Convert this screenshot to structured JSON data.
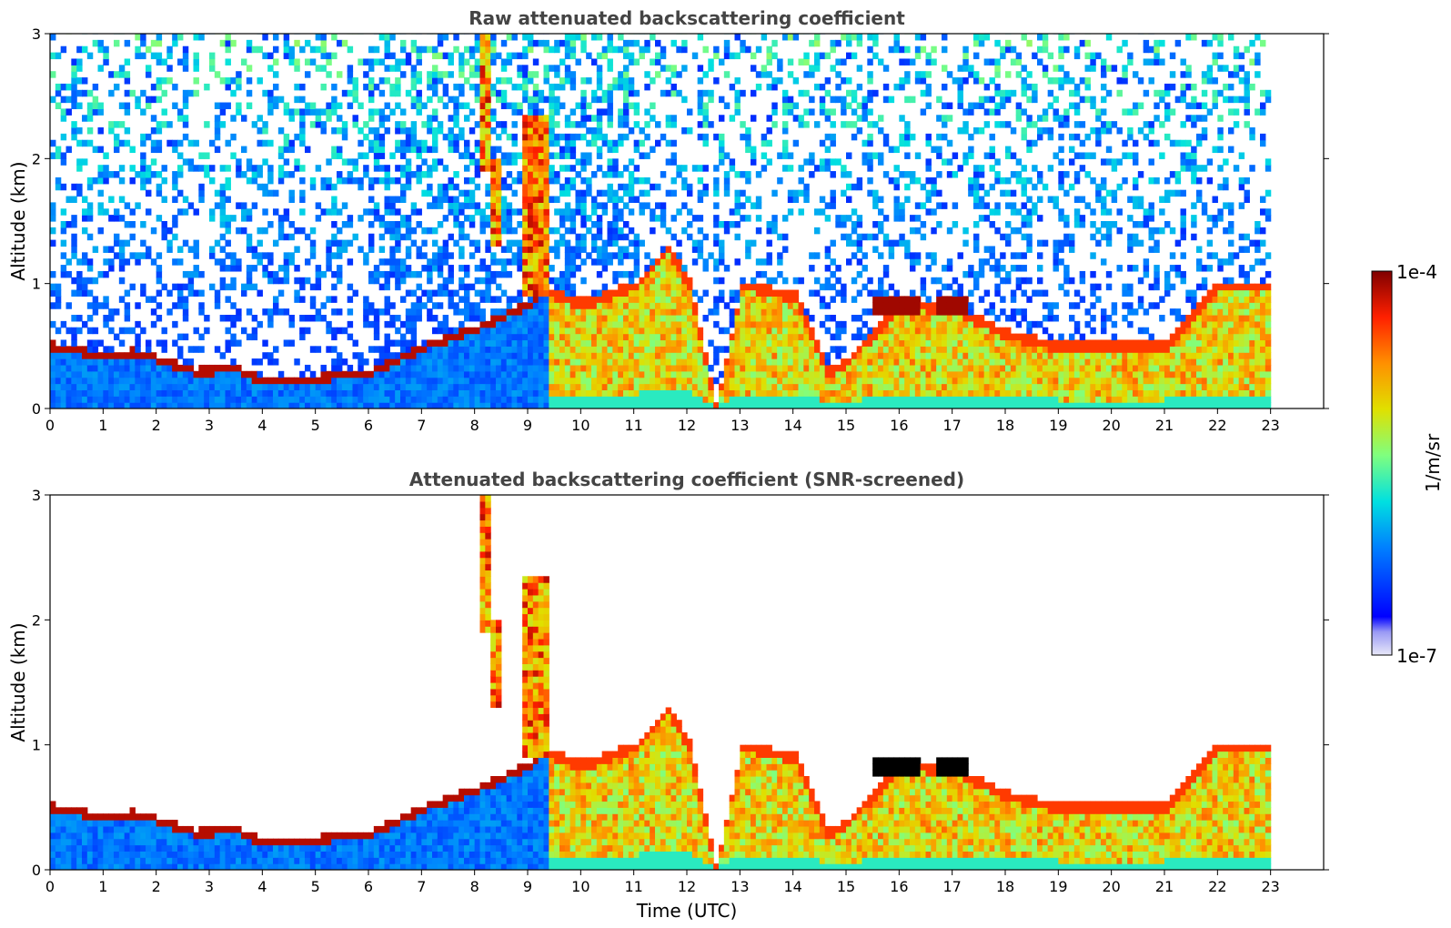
{
  "chart_data": [
    {
      "type": "heatmap",
      "title": "Raw attenuated backscattering coefficient",
      "xlabel": "",
      "ylabel": "Altitude (km)",
      "xlim": [
        0,
        24
      ],
      "ylim": [
        0,
        3
      ],
      "x_ticks": [
        "0",
        "1",
        "2",
        "3",
        "4",
        "5",
        "6",
        "7",
        "8",
        "9",
        "10",
        "11",
        "12",
        "13",
        "14",
        "15",
        "16",
        "17",
        "18",
        "19",
        "20",
        "21",
        "22",
        "23"
      ],
      "y_ticks": [
        "0",
        "1",
        "2",
        "3"
      ],
      "data_end_time": 23,
      "features": {
        "boundary_layer_top_km": [
          [
            0,
            0.5
          ],
          [
            1,
            0.42
          ],
          [
            1.5,
            0.45
          ],
          [
            2,
            0.4
          ],
          [
            2.7,
            0.3
          ],
          [
            3.5,
            0.32
          ],
          [
            4,
            0.22
          ],
          [
            5,
            0.25
          ],
          [
            6,
            0.3
          ],
          [
            7,
            0.5
          ],
          [
            8,
            0.65
          ],
          [
            9,
            0.85
          ],
          [
            9.3,
            0.95
          ],
          [
            10,
            0.85
          ],
          [
            11,
            1.0
          ],
          [
            11.6,
            1.3
          ],
          [
            12,
            1.0
          ],
          [
            12.5,
            0.0
          ],
          [
            13,
            1.0
          ],
          [
            14,
            0.9
          ],
          [
            14.6,
            0.3
          ],
          [
            15,
            0.4
          ],
          [
            16,
            0.85
          ],
          [
            17,
            0.8
          ],
          [
            18,
            0.6
          ],
          [
            19,
            0.5
          ],
          [
            20,
            0.5
          ],
          [
            21,
            0.5
          ],
          [
            22,
            1.0
          ],
          [
            23,
            1.0
          ]
        ],
        "elevated_plumes_km": [
          {
            "t0": 8.05,
            "t1": 8.2,
            "z0": 1.9,
            "z1": 3.0
          },
          {
            "t0": 8.3,
            "t1": 8.4,
            "z0": 1.3,
            "z1": 2.0
          },
          {
            "t0": 8.9,
            "t1": 9.35,
            "z0": 0.9,
            "z1": 2.3
          }
        ],
        "cloud_layers_km": [
          {
            "t0": 15.4,
            "t1": 16.3,
            "z": 0.8
          },
          {
            "t0": 16.6,
            "t1": 17.2,
            "z": 0.8
          }
        ]
      }
    },
    {
      "type": "heatmap",
      "title": "Attenuated backscattering coefficient (SNR-screened)",
      "xlabel": "Time (UTC)",
      "ylabel": "Altitude (km)",
      "xlim": [
        0,
        24
      ],
      "ylim": [
        0,
        3
      ],
      "x_ticks": [
        "0",
        "1",
        "2",
        "3",
        "4",
        "5",
        "6",
        "7",
        "8",
        "9",
        "10",
        "11",
        "12",
        "13",
        "14",
        "15",
        "16",
        "17",
        "18",
        "19",
        "20",
        "21",
        "22",
        "23"
      ],
      "y_ticks": [
        "0",
        "1",
        "2",
        "3"
      ],
      "data_end_time": 23
    }
  ],
  "colorbar": {
    "label": "1/m/sr",
    "max_label": "1e-4",
    "min_label": "1e-7",
    "vmin": 1e-07,
    "vmax": 0.0001,
    "scale": "log",
    "colormap": "jet"
  }
}
